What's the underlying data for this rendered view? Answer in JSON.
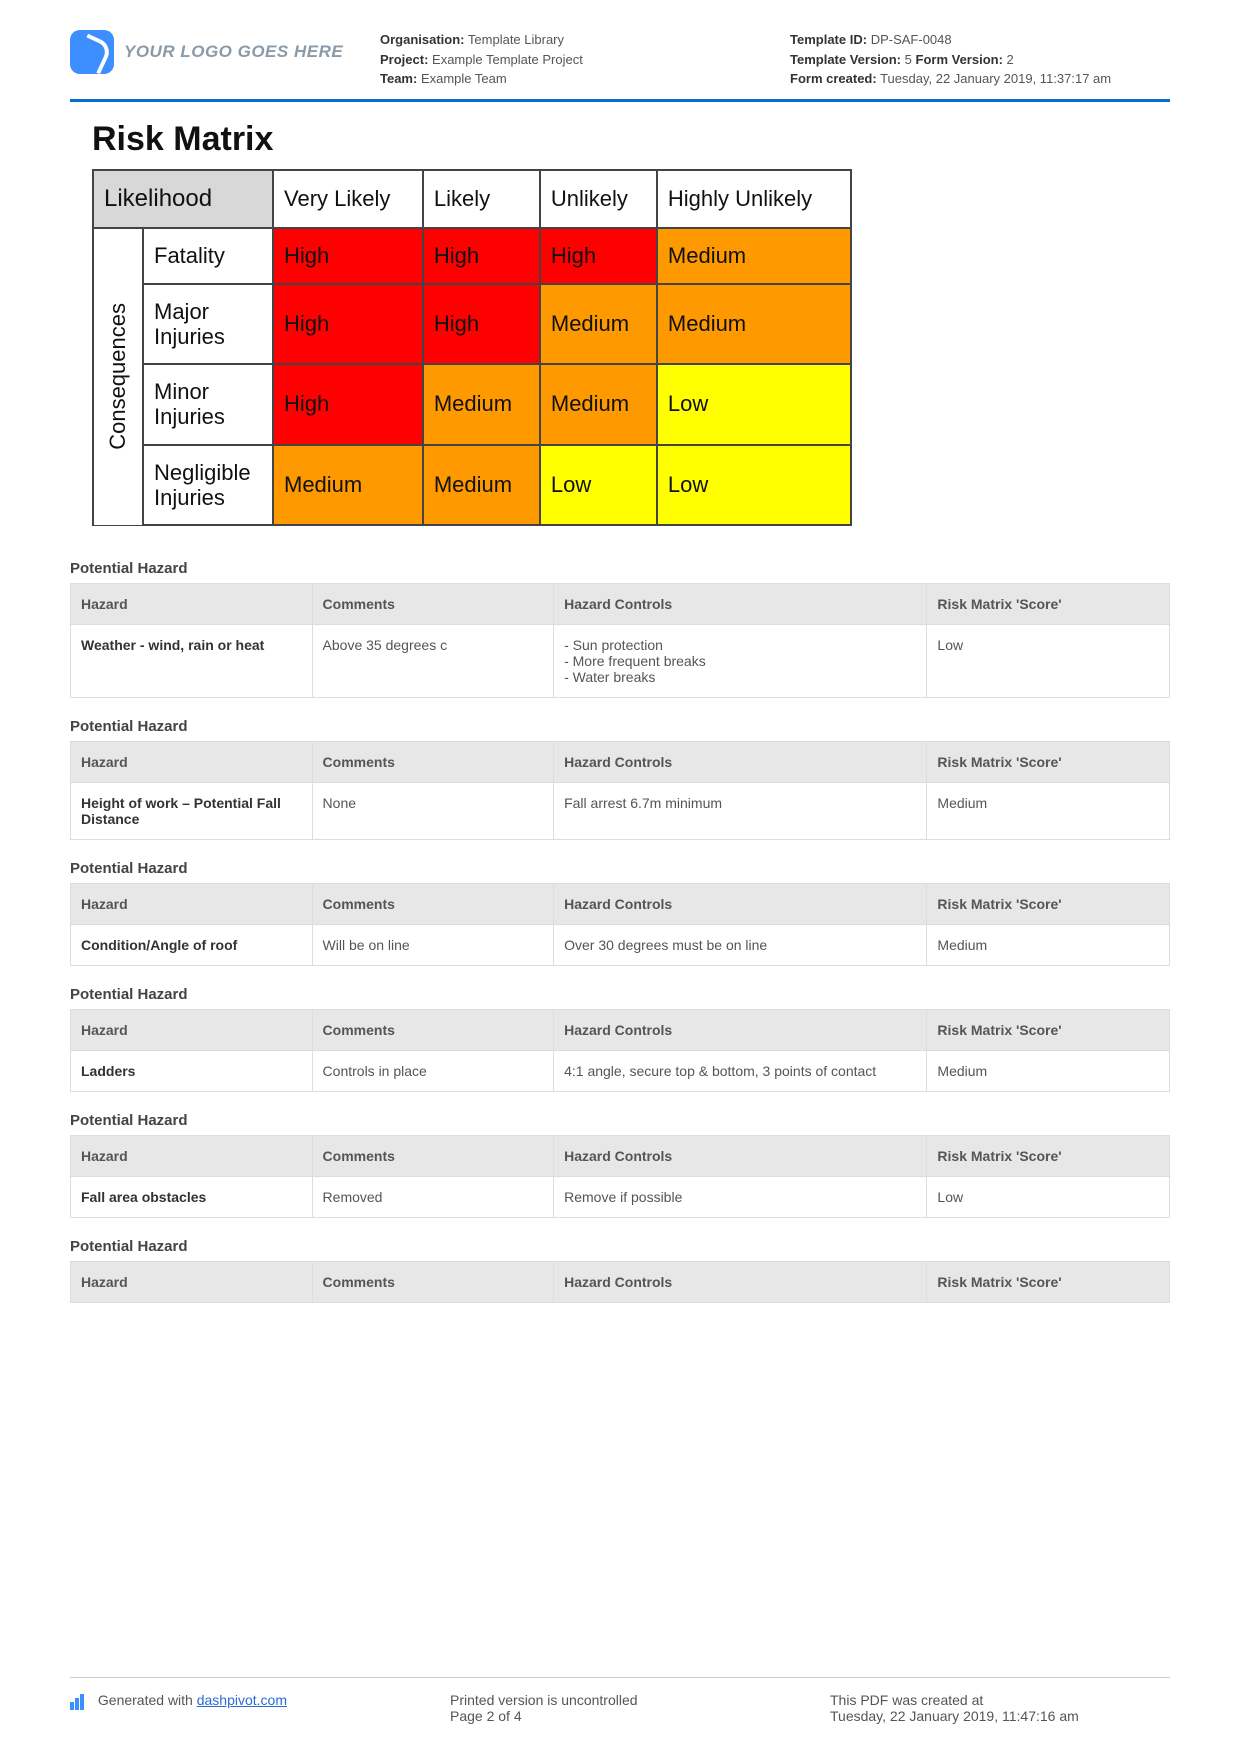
{
  "header": {
    "logo_text": "YOUR LOGO GOES HERE",
    "meta_left": {
      "organisation_label": "Organisation:",
      "organisation": "Template Library",
      "project_label": "Project:",
      "project": "Example Template Project",
      "team_label": "Team:",
      "team": "Example Team"
    },
    "meta_right": {
      "template_id_label": "Template ID:",
      "template_id": "DP-SAF-0048",
      "template_version_label": "Template Version:",
      "template_version": "5",
      "form_version_label": "Form Version:",
      "form_version": "2",
      "form_created_label": "Form created:",
      "form_created": "Tuesday, 22 January 2019, 11:37:17 am"
    }
  },
  "title": "Risk Matrix",
  "matrix": {
    "likelihood_label": "Likelihood",
    "consequences_label": "Consequences",
    "col_headers": [
      "Very Likely",
      "Likely",
      "Unlikely",
      "Highly Unlikely"
    ],
    "rows": [
      {
        "label": "Fatality",
        "cells": [
          {
            "t": "High",
            "c": "high"
          },
          {
            "t": "High",
            "c": "high"
          },
          {
            "t": "High",
            "c": "high"
          },
          {
            "t": "Medium",
            "c": "medium"
          }
        ]
      },
      {
        "label": "Major Injuries",
        "cells": [
          {
            "t": "High",
            "c": "high"
          },
          {
            "t": "High",
            "c": "high"
          },
          {
            "t": "Medium",
            "c": "medium"
          },
          {
            "t": "Medium",
            "c": "medium"
          }
        ]
      },
      {
        "label": "Minor Injuries",
        "cells": [
          {
            "t": "High",
            "c": "high"
          },
          {
            "t": "Medium",
            "c": "medium"
          },
          {
            "t": "Medium",
            "c": "medium"
          },
          {
            "t": "Low",
            "c": "low"
          }
        ]
      },
      {
        "label": "Negligible Injuries",
        "cells": [
          {
            "t": "Medium",
            "c": "medium"
          },
          {
            "t": "Medium",
            "c": "medium"
          },
          {
            "t": "Low",
            "c": "low"
          },
          {
            "t": "Low",
            "c": "low"
          }
        ]
      }
    ],
    "colors": {
      "high": "#ff0000",
      "medium": "#ff9900",
      "low": "#ffff00"
    }
  },
  "hazard_section_title": "Potential Hazard",
  "hazard_headers": {
    "hazard": "Hazard",
    "comments": "Comments",
    "controls": "Hazard Controls",
    "score": "Risk Matrix 'Score'"
  },
  "hazards": [
    {
      "hazard": "Weather - wind, rain or heat",
      "comments": "Above 35 degrees c",
      "controls": "- Sun protection\n- More frequent breaks\n- Water breaks",
      "score": "Low"
    },
    {
      "hazard": "Height of work – Potential Fall Distance",
      "comments": "None",
      "controls": "Fall arrest 6.7m minimum",
      "score": "Medium"
    },
    {
      "hazard": "Condition/Angle of roof",
      "comments": "Will be on line",
      "controls": "Over 30 degrees must be on line",
      "score": "Medium"
    },
    {
      "hazard": "Ladders",
      "comments": "Controls in place",
      "controls": "4:1 angle, secure top & bottom, 3 points of contact",
      "score": "Medium"
    },
    {
      "hazard": "Fall area obstacles",
      "comments": "Removed",
      "controls": "Remove if possible",
      "score": "Low"
    },
    {
      "hazard": "",
      "comments": "",
      "controls": "",
      "score": "",
      "header_only": true
    }
  ],
  "footer": {
    "generated_prefix": "Generated with ",
    "generated_link": "dashpivot.com",
    "uncontrolled": "Printed version is uncontrolled",
    "page": "Page 2 of 4",
    "created_at_label": "This PDF was created at",
    "created_at": "Tuesday, 22 January 2019, 11:47:16 am"
  }
}
